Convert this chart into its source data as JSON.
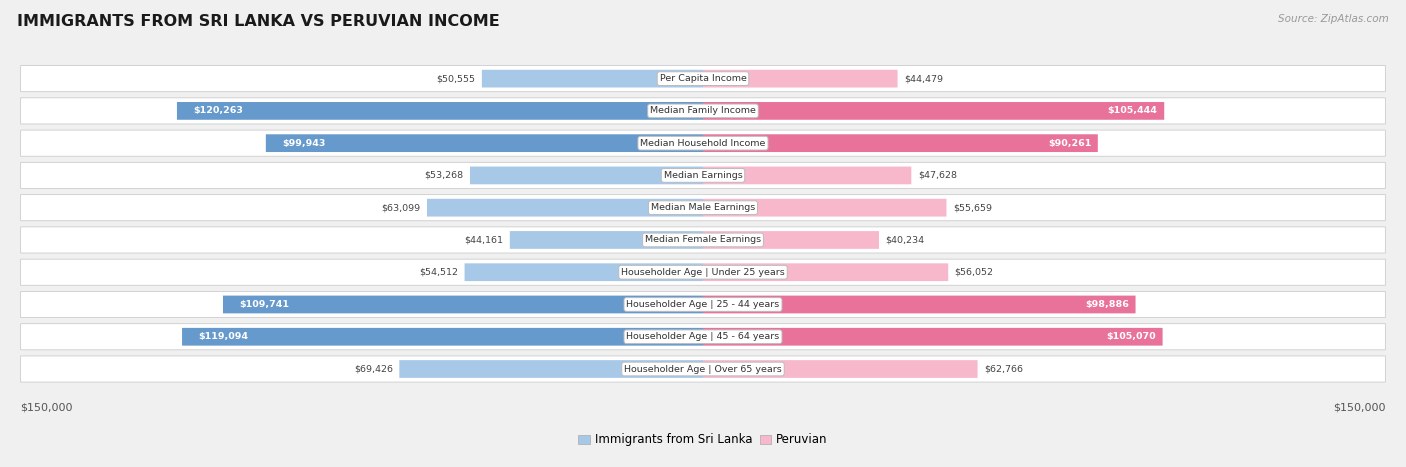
{
  "title": "IMMIGRANTS FROM SRI LANKA VS PERUVIAN INCOME",
  "source": "Source: ZipAtlas.com",
  "categories": [
    "Per Capita Income",
    "Median Family Income",
    "Median Household Income",
    "Median Earnings",
    "Median Male Earnings",
    "Median Female Earnings",
    "Householder Age | Under 25 years",
    "Householder Age | 25 - 44 years",
    "Householder Age | 45 - 64 years",
    "Householder Age | Over 65 years"
  ],
  "sri_lanka_values": [
    50555,
    120263,
    99943,
    53268,
    63099,
    44161,
    54512,
    109741,
    119094,
    69426
  ],
  "peruvian_values": [
    44479,
    105444,
    90261,
    47628,
    55659,
    40234,
    56052,
    98886,
    105070,
    62766
  ],
  "max_value": 150000,
  "sri_lanka_color_light": "#a8c8e8",
  "sri_lanka_color_dark": "#6699cc",
  "peruvian_color_light": "#f7b8cc",
  "peruvian_color_dark": "#e8729a",
  "bg_color": "#f0f0f0",
  "row_bg_color": "#ffffff",
  "border_color": "#cccccc",
  "text_dark": "#444444",
  "text_white": "#ffffff",
  "threshold_sl": 85000,
  "threshold_pe": 75000,
  "legend_sl": "Immigrants from Sri Lanka",
  "legend_pe": "Peruvian"
}
